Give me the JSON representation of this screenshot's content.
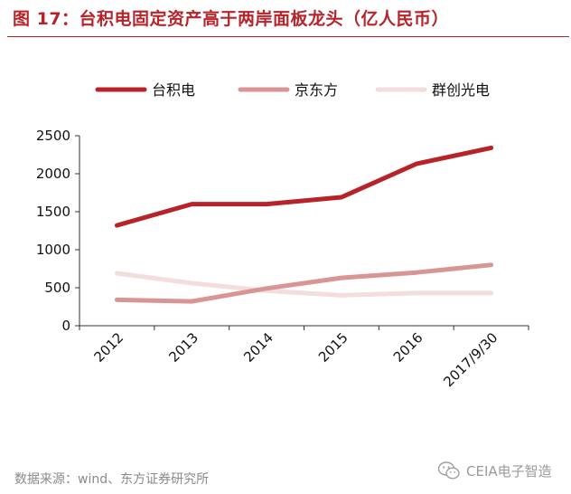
{
  "header": {
    "title": "图 17：台积电固定资产高于两岸面板龙头（亿人民币）"
  },
  "footer": {
    "source": "数据来源：wind、东方证券研究所",
    "watermark": "CEIA电子智造",
    "watermark_icon": "wechat-icon"
  },
  "chart_data": {
    "type": "line",
    "categories": [
      "2012",
      "2013",
      "2014",
      "2015",
      "2016",
      "2017/9/30"
    ],
    "series": [
      {
        "name": "台积电",
        "values": [
          1320,
          1600,
          1600,
          1690,
          2130,
          2340
        ],
        "color": "#b8232a"
      },
      {
        "name": "京东方",
        "values": [
          340,
          320,
          490,
          630,
          700,
          800
        ],
        "color": "#d99594"
      },
      {
        "name": "群创光电",
        "values": [
          690,
          560,
          460,
          400,
          430,
          430
        ],
        "color": "#f2dedd"
      }
    ],
    "yticks": [
      0,
      500,
      1000,
      1500,
      2000,
      2500
    ],
    "ylim": [
      0,
      2500
    ],
    "grid": false,
    "legend": "top"
  }
}
